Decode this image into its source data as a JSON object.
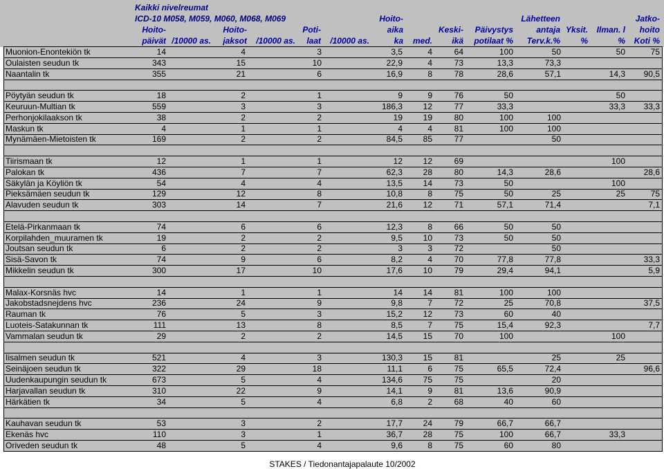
{
  "header": {
    "line1": "Kaikki nivelreumat",
    "line2": "ICD-10 M058, M059, M060, M068, M069",
    "columns": [
      {
        "l1": "",
        "l2": "",
        "l3": "Hoito-",
        "l4": "päivät"
      },
      {
        "l1": "",
        "l2": "",
        "l3": "",
        "l4": "/10000 as."
      },
      {
        "l1": "",
        "l2": "",
        "l3": "Hoito-",
        "l4": "jaksot"
      },
      {
        "l1": "",
        "l2": "",
        "l3": "",
        "l4": "/10000 as."
      },
      {
        "l1": "",
        "l2": "",
        "l3": "Poti-",
        "l4": "laat"
      },
      {
        "l1": "",
        "l2": "",
        "l3": "",
        "l4": "/10000 as."
      },
      {
        "l1": "",
        "l2": "Hoito-",
        "l3": "aika",
        "l4": "ka"
      },
      {
        "l1": "",
        "l2": "",
        "l3": "",
        "l4": "med."
      },
      {
        "l1": "",
        "l2": "",
        "l3": "Keski-",
        "l4": "ikä"
      },
      {
        "l1": "",
        "l2": "",
        "l3": "Päivystys",
        "l4": "potilaat %"
      },
      {
        "l1": "",
        "l2": "Lähetteen",
        "l3": "antaja",
        "l4": "Terv.k.%"
      },
      {
        "l1": "",
        "l2": "",
        "l3": "Yksit.",
        "l4": "%"
      },
      {
        "l1": "",
        "l2": "",
        "l3": "Ilman. l",
        "l4": "%"
      },
      {
        "l1": "",
        "l2": "Jatko-",
        "l3": "hoito",
        "l4": "Koti %"
      }
    ]
  },
  "rows": [
    {
      "name": "Muonion-Enontekiön tk",
      "vals": [
        "14",
        "4",
        "3",
        "3,5",
        "4",
        "64",
        "100",
        "50",
        "50",
        "75"
      ]
    },
    {
      "name": "Oulaisten seudun tk",
      "vals": [
        "343",
        "15",
        "10",
        "22,9",
        "4",
        "73",
        "13,3",
        "73,3",
        "",
        ""
      ]
    },
    {
      "name": "Naantalin tk",
      "vals": [
        "355",
        "21",
        "6",
        "16,9",
        "8",
        "78",
        "28,6",
        "57,1",
        "14,3",
        "90,5"
      ]
    },
    {
      "name": "",
      "vals": []
    },
    {
      "name": "Pöytyän seudun tk",
      "vals": [
        "18",
        "2",
        "1",
        "9",
        "9",
        "76",
        "50",
        "",
        "50",
        ""
      ]
    },
    {
      "name": "Keuruun-Multian tk",
      "vals": [
        "559",
        "3",
        "3",
        "186,3",
        "12",
        "77",
        "33,3",
        "",
        "33,3",
        "33,3"
      ]
    },
    {
      "name": "Perhonjokilaakson tk",
      "vals": [
        "38",
        "2",
        "2",
        "19",
        "19",
        "80",
        "100",
        "100",
        "",
        ""
      ]
    },
    {
      "name": "Maskun tk",
      "vals": [
        "4",
        "1",
        "1",
        "4",
        "4",
        "81",
        "100",
        "100",
        "",
        ""
      ]
    },
    {
      "name": "Mynämäen-Mietoisten tk",
      "vals": [
        "169",
        "2",
        "2",
        "84,5",
        "85",
        "77",
        "",
        "50",
        "",
        ""
      ]
    },
    {
      "name": "",
      "vals": []
    },
    {
      "name": "Tiirismaan tk",
      "vals": [
        "12",
        "1",
        "1",
        "12",
        "12",
        "69",
        "",
        "",
        "100",
        ""
      ]
    },
    {
      "name": "Palokan tk",
      "vals": [
        "436",
        "7",
        "7",
        "62,3",
        "28",
        "80",
        "14,3",
        "28,6",
        "",
        "28,6"
      ]
    },
    {
      "name": "Säkylän ja Köyliön tk",
      "vals": [
        "54",
        "4",
        "4",
        "13,5",
        "14",
        "73",
        "50",
        "",
        "100",
        ""
      ]
    },
    {
      "name": "Pieksämäen seudun tk",
      "vals": [
        "129",
        "12",
        "8",
        "10,8",
        "8",
        "75",
        "50",
        "25",
        "25",
        "75"
      ]
    },
    {
      "name": "Alavuden seudun tk",
      "vals": [
        "303",
        "14",
        "7",
        "21,6",
        "12",
        "71",
        "57,1",
        "71,4",
        "",
        "7,1"
      ]
    },
    {
      "name": "",
      "vals": []
    },
    {
      "name": "Etelä-Pirkanmaan tk",
      "vals": [
        "74",
        "6",
        "6",
        "12,3",
        "8",
        "66",
        "50",
        "50",
        "",
        ""
      ]
    },
    {
      "name": "Korpilahden_muuramen tk",
      "vals": [
        "19",
        "2",
        "2",
        "9,5",
        "10",
        "73",
        "50",
        "50",
        "",
        ""
      ]
    },
    {
      "name": "Joutsan seudun tk",
      "vals": [
        "6",
        "2",
        "2",
        "3",
        "3",
        "72",
        "",
        "50",
        "",
        ""
      ]
    },
    {
      "name": "Sisä-Savon tk",
      "vals": [
        "74",
        "9",
        "6",
        "8,2",
        "4",
        "70",
        "77,8",
        "77,8",
        "",
        "33,3"
      ]
    },
    {
      "name": "Mikkelin seudun tk",
      "vals": [
        "300",
        "17",
        "10",
        "17,6",
        "10",
        "79",
        "29,4",
        "94,1",
        "",
        "5,9"
      ]
    },
    {
      "name": "",
      "vals": []
    },
    {
      "name": "Malax-Korsnäs hvc",
      "vals": [
        "14",
        "1",
        "1",
        "14",
        "14",
        "81",
        "100",
        "100",
        "",
        ""
      ]
    },
    {
      "name": "Jakobstadsnejdens hvc",
      "vals": [
        "236",
        "24",
        "9",
        "9,8",
        "7",
        "72",
        "25",
        "70,8",
        "",
        "37,5"
      ]
    },
    {
      "name": "Rauman tk",
      "vals": [
        "76",
        "5",
        "3",
        "15,2",
        "12",
        "73",
        "60",
        "40",
        "",
        ""
      ]
    },
    {
      "name": "Luoteis-Satakunnan tk",
      "vals": [
        "111",
        "13",
        "8",
        "8,5",
        "7",
        "75",
        "15,4",
        "92,3",
        "",
        "7,7"
      ]
    },
    {
      "name": "Vammalan seudun tk",
      "vals": [
        "29",
        "2",
        "2",
        "14,5",
        "15",
        "70",
        "100",
        "",
        "100",
        ""
      ]
    },
    {
      "name": "",
      "vals": []
    },
    {
      "name": "Iisalmen seudun tk",
      "vals": [
        "521",
        "4",
        "3",
        "130,3",
        "15",
        "81",
        "",
        "25",
        "25",
        ""
      ]
    },
    {
      "name": "Seinäjoen seudun tk",
      "vals": [
        "322",
        "29",
        "18",
        "11,1",
        "6",
        "75",
        "65,5",
        "72,4",
        "",
        "96,6"
      ]
    },
    {
      "name": "Uudenkaupungin seudun tk",
      "vals": [
        "673",
        "5",
        "4",
        "134,6",
        "75",
        "75",
        "",
        "20",
        "",
        ""
      ]
    },
    {
      "name": "Harjavallan seudun tk",
      "vals": [
        "310",
        "22",
        "9",
        "14,1",
        "9",
        "81",
        "13,6",
        "90,9",
        "",
        ""
      ]
    },
    {
      "name": "Härkätien tk",
      "vals": [
        "34",
        "5",
        "4",
        "6,8",
        "2",
        "68",
        "40",
        "60",
        "",
        ""
      ]
    },
    {
      "name": "",
      "vals": []
    },
    {
      "name": "Kauhavan seudun tk",
      "vals": [
        "53",
        "3",
        "2",
        "17,7",
        "24",
        "79",
        "66,7",
        "66,7",
        "",
        ""
      ]
    },
    {
      "name": "Ekenäs hvc",
      "vals": [
        "110",
        "3",
        "1",
        "36,7",
        "28",
        "75",
        "100",
        "66,7",
        "33,3",
        ""
      ]
    },
    {
      "name": "Oriveden seudun tk",
      "vals": [
        "48",
        "5",
        "4",
        "9,6",
        "8",
        "75",
        "60",
        "80",
        "",
        ""
      ]
    }
  ],
  "footer": "STAKES / Tiedonantajapalaute  10/2002"
}
